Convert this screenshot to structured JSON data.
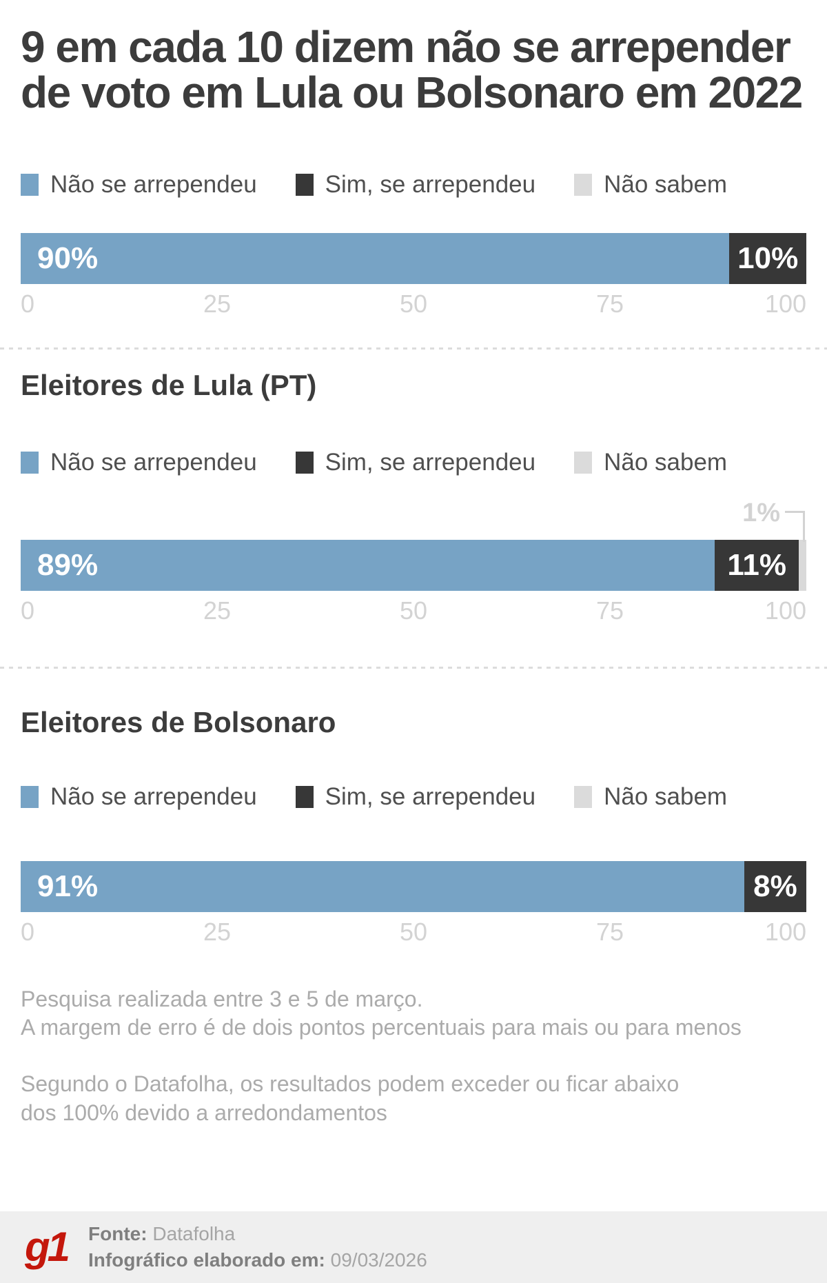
{
  "title": "9 em cada 10 dizem não se arrepender de voto em Lula ou Bolsonaro em 2022",
  "colors": {
    "blue": "#77A3C5",
    "dark": "#373737",
    "light_gray": "#DBDBDB",
    "axis_gray": "#D3D3D3",
    "brand_red": "#C4170C"
  },
  "legend": {
    "items": [
      {
        "key": "nao-se-arrependeu",
        "label": "Não se arrependeu",
        "color": "#77A3C5"
      },
      {
        "key": "sim-se-arrependeu",
        "label": "Sim, se arrependeu",
        "color": "#373737"
      },
      {
        "key": "nao-sabem",
        "label": "Não sabem",
        "color": "#DBDBDB"
      }
    ]
  },
  "chart_data": [
    {
      "type": "bar",
      "stacked": true,
      "orientation": "horizontal",
      "group_label": "",
      "unit": "%",
      "xlim": [
        0,
        100
      ],
      "ticks": [
        "0",
        "25",
        "50",
        "75",
        "100"
      ],
      "segments": [
        {
          "key": "nao-se-arrependeu",
          "label": "Não se arrependeu",
          "value": 90,
          "display": "90%",
          "color": "#77A3C5",
          "show_label": true
        },
        {
          "key": "sim-se-arrependeu",
          "label": "Sim, se arrependeu",
          "value": 10,
          "display": "10%",
          "color": "#373737",
          "show_label": true
        }
      ]
    },
    {
      "type": "bar",
      "stacked": true,
      "orientation": "horizontal",
      "group_label": "Eleitores de Lula (PT)",
      "unit": "%",
      "xlim": [
        0,
        100
      ],
      "ticks": [
        "0",
        "25",
        "50",
        "75",
        "100"
      ],
      "segments": [
        {
          "key": "nao-se-arrependeu",
          "label": "Não se arrependeu",
          "value": 89,
          "display": "89%",
          "color": "#77A3C5",
          "show_label": true
        },
        {
          "key": "sim-se-arrependeu",
          "label": "Sim, se arrependeu",
          "value": 11,
          "display": "11%",
          "color": "#373737",
          "show_label": true
        },
        {
          "key": "nao-sabem",
          "label": "Não sabem",
          "value": 1,
          "display": "1%",
          "color": "#D9D9D9",
          "show_label": false
        }
      ],
      "callout": {
        "text": "1%",
        "target": "Não sabem"
      }
    },
    {
      "type": "bar",
      "stacked": true,
      "orientation": "horizontal",
      "group_label": "Eleitores de Bolsonaro",
      "unit": "%",
      "xlim": [
        0,
        100
      ],
      "ticks": [
        "0",
        "25",
        "50",
        "75",
        "100"
      ],
      "segments": [
        {
          "key": "nao-se-arrependeu",
          "label": "Não se arrependeu",
          "value": 91,
          "display": "91%",
          "color": "#77A3C5",
          "show_label": true
        },
        {
          "key": "sim-se-arrependeu",
          "label": "Sim, se arrependeu",
          "value": 8,
          "display": "8%",
          "color": "#373737",
          "show_label": true
        }
      ]
    }
  ],
  "footnotes": [
    "Pesquisa realizada entre 3 e 5 de março.\nA margem de erro é de dois pontos percentuais para mais ou para menos",
    "Segundo o Datafolha, os resultados podem exceder ou ficar abaixo\ndos 100% devido a arredondamentos"
  ],
  "footer": {
    "logo": "g1",
    "source_label": "Fonte:",
    "source_value": "Datafolha",
    "date_label": "Infográfico elaborado em:",
    "date_value": "09/03/2026"
  }
}
